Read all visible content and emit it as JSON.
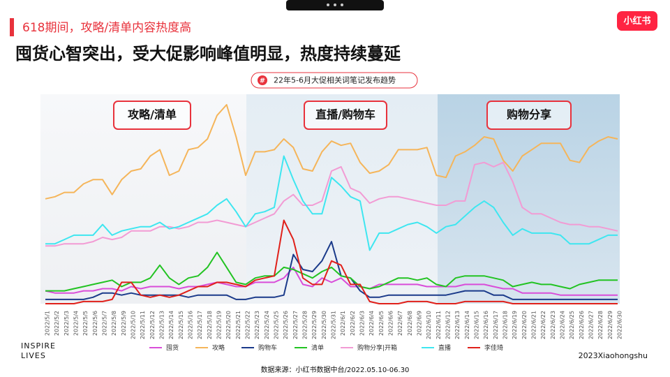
{
  "header": {
    "kicker": "618期间，攻略/清单内容热度高",
    "title": "囤货心智突出，受大促影响峰值明显，热度持续蔓延",
    "badge": "小红书"
  },
  "chart_data": {
    "type": "line",
    "subtitle_icon": "#",
    "subtitle": "22年5-6月大促相关词笔记发布趋势",
    "regions": [
      "攻略/清单",
      "直播/购物车",
      "购物分享"
    ],
    "categories": [
      "2022/5/1",
      "2022/5/2",
      "2022/5/3",
      "2022/5/4",
      "2022/5/5",
      "2022/5/6",
      "2022/5/7",
      "2022/5/8",
      "2022/5/9",
      "2022/5/10",
      "2022/5/11",
      "2022/5/12",
      "2022/5/13",
      "2022/5/14",
      "2022/5/15",
      "2022/5/16",
      "2022/5/17",
      "2022/5/18",
      "2022/5/19",
      "2022/5/20",
      "2022/5/21",
      "2022/5/22",
      "2022/5/23",
      "2022/5/24",
      "2022/5/25",
      "2022/5/26",
      "2022/5/27",
      "2022/5/28",
      "2022/5/29",
      "2022/5/30",
      "2022/5/31",
      "2022/6/1",
      "2022/6/2",
      "2022/6/3",
      "2022/6/4",
      "2022/6/5",
      "2022/6/6",
      "2022/6/7",
      "2022/6/8",
      "2022/6/9",
      "2022/6/10",
      "2022/6/11",
      "2022/6/12",
      "2022/6/13",
      "2022/6/14",
      "2022/6/15",
      "2022/6/16",
      "2022/6/17",
      "2022/6/18",
      "2022/6/19",
      "2022/6/20",
      "2022/6/21",
      "2022/6/22",
      "2022/6/23",
      "2022/6/24",
      "2022/6/25",
      "2022/6/26",
      "2022/6/27",
      "2022/6/28",
      "2022/6/29",
      "2022/6/30"
    ],
    "series": [
      {
        "name": "囤货",
        "color": "#d94dd9",
        "values": [
          6,
          5,
          5,
          5,
          6,
          6,
          7,
          7,
          6,
          8,
          7,
          8,
          8,
          8,
          7,
          8,
          8,
          9,
          10,
          9,
          8,
          8,
          10,
          10,
          10,
          12,
          17,
          9,
          8,
          12,
          10,
          12,
          8,
          8,
          7,
          9,
          9,
          9,
          9,
          9,
          8,
          8,
          8,
          8,
          9,
          9,
          9,
          8,
          7,
          7,
          5,
          5,
          5,
          5,
          4,
          4,
          4,
          4,
          4,
          4,
          4
        ]
      },
      {
        "name": "攻略",
        "color": "#f5b55a",
        "values": [
          49,
          50,
          52,
          52,
          56,
          58,
          58,
          51,
          58,
          62,
          63,
          69,
          72,
          60,
          62,
          72,
          73,
          77,
          88,
          93,
          78,
          60,
          71,
          71,
          72,
          77,
          73,
          63,
          62,
          71,
          76,
          74,
          75,
          66,
          61,
          62,
          65,
          72,
          72,
          72,
          73,
          60,
          59,
          69,
          71,
          74,
          78,
          77,
          67,
          62,
          69,
          72,
          75,
          75,
          75,
          67,
          66,
          73,
          76,
          78,
          77
        ]
      },
      {
        "name": "购物车",
        "color": "#1a3a8a",
        "values": [
          2,
          2,
          2,
          2,
          2,
          3,
          5,
          5,
          4,
          5,
          4,
          4,
          4,
          4,
          4,
          3,
          4,
          4,
          4,
          4,
          2,
          2,
          3,
          3,
          3,
          4,
          23,
          16,
          15,
          20,
          29,
          13,
          12,
          6,
          3,
          3,
          4,
          4,
          4,
          4,
          4,
          4,
          4,
          5,
          6,
          6,
          6,
          4,
          4,
          2,
          2,
          2,
          2,
          2,
          2,
          2,
          2,
          2,
          2,
          2,
          2
        ]
      },
      {
        "name": "清单",
        "color": "#22c322",
        "values": [
          6,
          6,
          6,
          7,
          8,
          9,
          10,
          11,
          8,
          10,
          10,
          12,
          18,
          12,
          9,
          12,
          13,
          17,
          24,
          17,
          10,
          9,
          12,
          13,
          13,
          17,
          16,
          14,
          12,
          15,
          17,
          13,
          12,
          8,
          7,
          8,
          10,
          12,
          12,
          11,
          12,
          9,
          8,
          12,
          13,
          13,
          13,
          12,
          11,
          8,
          9,
          10,
          9,
          9,
          8,
          7,
          9,
          10,
          11,
          11,
          11
        ]
      },
      {
        "name": "购物分享|开箱",
        "color": "#f29bd4",
        "values": [
          27,
          27,
          28,
          28,
          28,
          29,
          31,
          30,
          31,
          34,
          34,
          34,
          36,
          36,
          35,
          36,
          38,
          38,
          39,
          38,
          37,
          36,
          38,
          40,
          42,
          48,
          51,
          46,
          46,
          48,
          62,
          64,
          54,
          52,
          47,
          49,
          50,
          50,
          49,
          48,
          47,
          46,
          46,
          48,
          48,
          65,
          66,
          64,
          66,
          57,
          45,
          42,
          42,
          40,
          38,
          37,
          37,
          36,
          36,
          35,
          34
        ]
      },
      {
        "name": "直播",
        "color": "#3ee6f0",
        "values": [
          28,
          28,
          30,
          32,
          32,
          32,
          37,
          32,
          34,
          35,
          36,
          36,
          38,
          35,
          36,
          38,
          40,
          42,
          46,
          49,
          43,
          36,
          42,
          43,
          45,
          69,
          58,
          48,
          42,
          42,
          59,
          55,
          50,
          48,
          25,
          33,
          33,
          35,
          37,
          38,
          36,
          33,
          36,
          37,
          41,
          45,
          48,
          45,
          38,
          32,
          35,
          33,
          33,
          33,
          32,
          28,
          28,
          28,
          30,
          32,
          32
        ]
      },
      {
        "name": "李佳琦",
        "color": "#e0201a",
        "values": [
          0,
          0,
          0,
          0,
          1,
          1,
          1,
          2,
          10,
          10,
          4,
          3,
          4,
          3,
          4,
          6,
          8,
          8,
          10,
          10,
          9,
          8,
          11,
          12,
          13,
          39,
          30,
          12,
          9,
          9,
          20,
          18,
          9,
          9,
          1,
          0,
          0,
          0,
          1,
          1,
          1,
          0,
          0,
          0,
          1,
          1,
          1,
          1,
          1,
          0,
          0,
          0,
          0,
          0,
          0,
          0,
          0,
          0,
          0,
          0,
          0
        ]
      }
    ]
  },
  "footer": {
    "brand_line1": "INSPIRE",
    "brand_line2": "LIVES",
    "copyright": "2023Xiaohongshu",
    "source": "数据来源：小红书数据中台/2022.05.10-06.30"
  }
}
